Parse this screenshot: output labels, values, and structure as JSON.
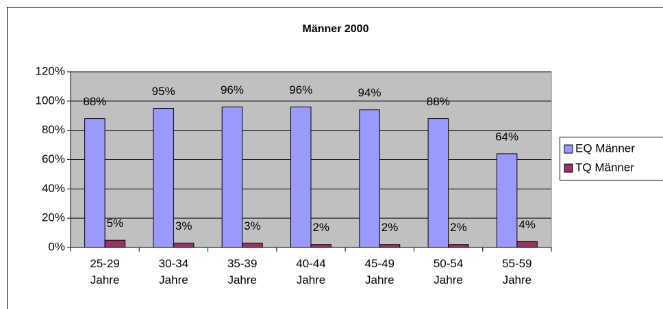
{
  "chart_data": {
    "type": "bar",
    "title": "Männer 2000",
    "categories": [
      "25-29 Jahre",
      "30-34 Jahre",
      "35-39 Jahre",
      "40-44 Jahre",
      "45-49 Jahre",
      "50-54 Jahre",
      "55-59 Jahre"
    ],
    "series": [
      {
        "name": "EQ Männer",
        "color": "#9999ff",
        "values": [
          88,
          95,
          96,
          96,
          94,
          88,
          64
        ],
        "value_labels": [
          "88%",
          "95%",
          "96%",
          "96%",
          "94%",
          "88%",
          "64%"
        ]
      },
      {
        "name": "TQ Männer",
        "color": "#993366",
        "values": [
          5,
          3,
          3,
          2,
          2,
          2,
          4
        ],
        "value_labels": [
          "5%",
          "3%",
          "3%",
          "2%",
          "2%",
          "2%",
          "4%"
        ]
      }
    ],
    "ylim": [
      0,
      120
    ],
    "yticks": [
      {
        "value": 0,
        "label": "0%"
      },
      {
        "value": 20,
        "label": "20%"
      },
      {
        "value": 40,
        "label": "40%"
      },
      {
        "value": 60,
        "label": "60%"
      },
      {
        "value": 80,
        "label": "80%"
      },
      {
        "value": 100,
        "label": "100%"
      },
      {
        "value": 120,
        "label": "120%"
      }
    ],
    "grid": true,
    "legend": "right"
  }
}
